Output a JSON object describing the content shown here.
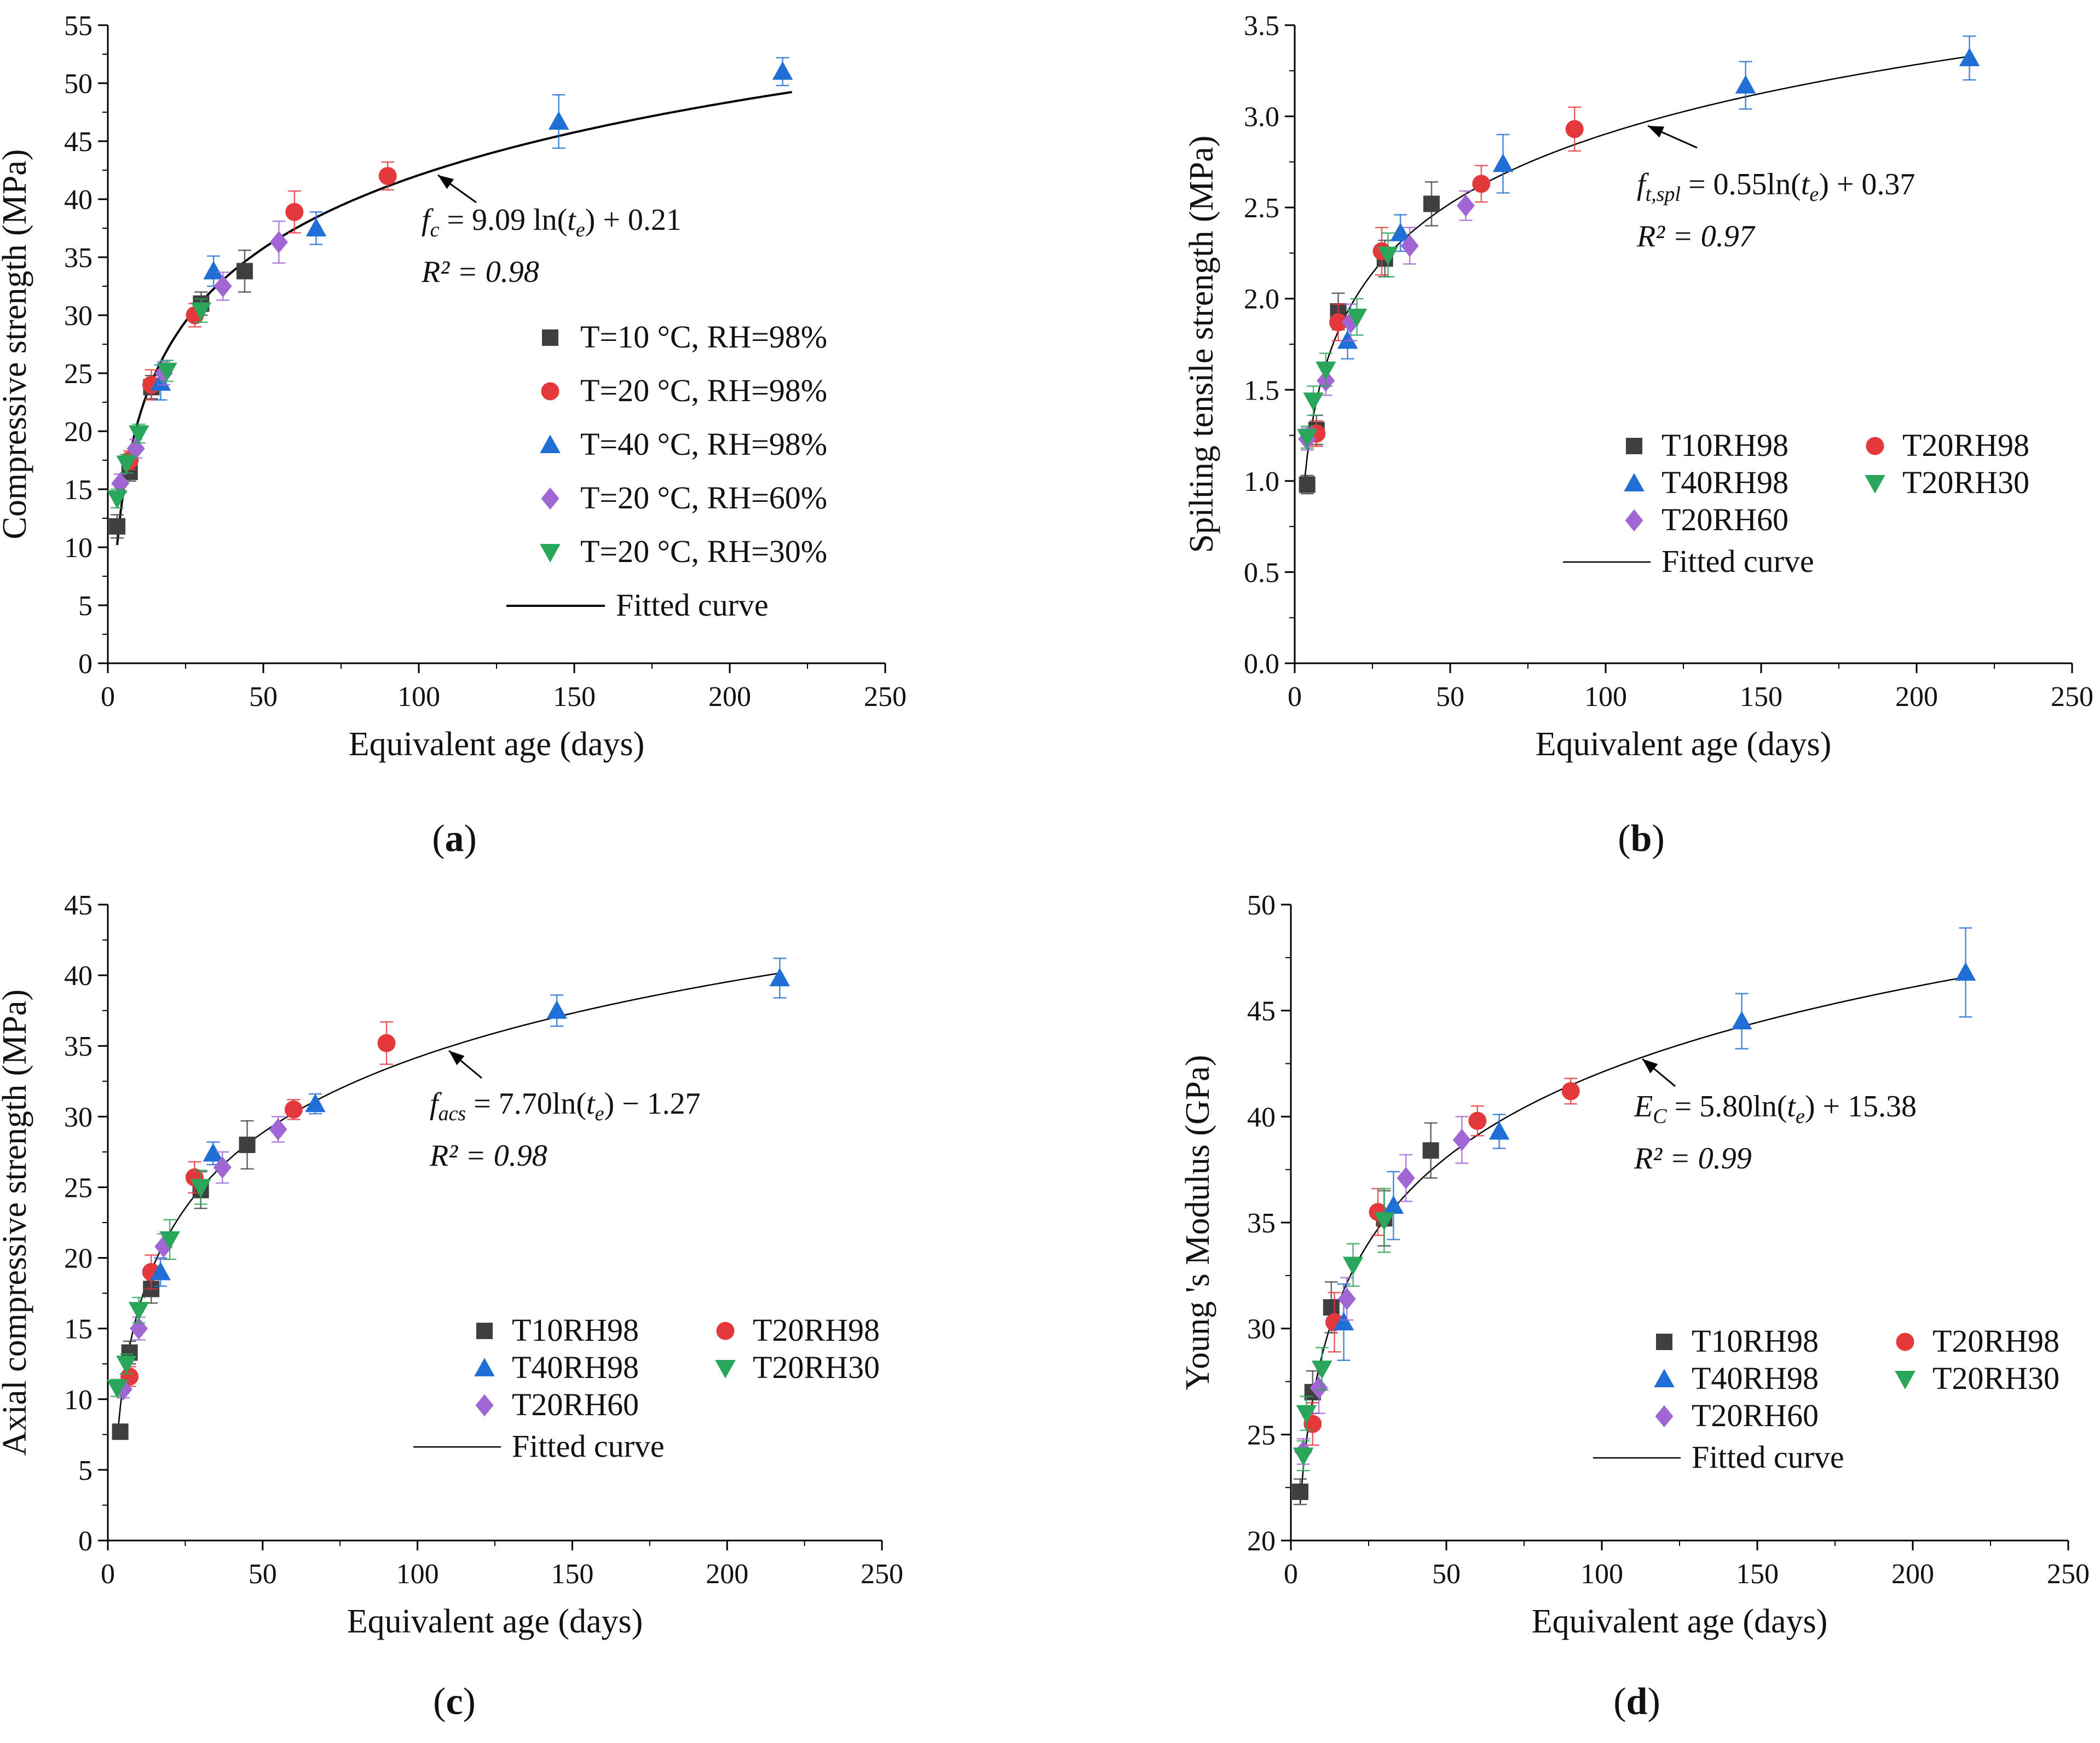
{
  "colors": {
    "T10RH98": "#3f3f3f",
    "T20RH98": "#e5383b",
    "T40RH98": "#1f6fd6",
    "T20RH60": "#a066d3",
    "T20RH30": "#2aa65a",
    "curve": "#000000"
  },
  "chart_data": [
    {
      "type": "scatter",
      "panel": "(a)",
      "xlabel": "Equivalent age (days)",
      "ylabel": "Compressive strength (MPa)",
      "xlim": [
        0,
        250
      ],
      "ylim": [
        0,
        55
      ],
      "xticks": [
        0,
        50,
        100,
        150,
        200,
        250
      ],
      "yticks": [
        0,
        5,
        10,
        15,
        20,
        25,
        30,
        35,
        40,
        45,
        50,
        55
      ],
      "equation": "f_c = 9.09 ln(t_e) + 0.21",
      "r2": "R² = 0.98",
      "fit": {
        "a": 9.09,
        "b": 0.21,
        "x_range": [
          3,
          220
        ]
      },
      "legend_labels": [
        "T=10 °C, RH=98%",
        "T=20 °C, RH=98%",
        "T=40 °C, RH=98%",
        "T=20 °C, RH=60%",
        "T=20 °C, RH=30%",
        "Fitted curve"
      ],
      "series": [
        {
          "name": "T10RH98",
          "marker": "square",
          "points": [
            [
              3,
              11.8,
              1
            ],
            [
              7,
              16.5,
              0.8
            ],
            [
              14,
              23.8,
              1
            ],
            [
              30,
              31,
              1
            ],
            [
              44,
              33.8,
              1.8
            ]
          ]
        },
        {
          "name": "T20RH98",
          "marker": "circle",
          "points": [
            [
              7,
              17.5,
              0.8
            ],
            [
              14,
              24,
              1.3
            ],
            [
              28,
              30,
              1
            ],
            [
              60,
              38.9,
              1.8
            ],
            [
              90,
              42,
              1.2
            ]
          ]
        },
        {
          "name": "T40RH98",
          "marker": "triangle",
          "points": [
            [
              17,
              24.2,
              1.5
            ],
            [
              34,
              33.8,
              1.3
            ],
            [
              67,
              37.5,
              1.4
            ],
            [
              145,
              46.7,
              2.3
            ],
            [
              217,
              51,
              1.2
            ]
          ]
        },
        {
          "name": "T20RH60",
          "marker": "diamond",
          "points": [
            [
              4,
              15.5,
              0.8
            ],
            [
              9,
              18.5,
              0.8
            ],
            [
              18,
              25,
              1
            ],
            [
              37,
              32.5,
              1.2
            ],
            [
              55,
              36.3,
              1.8
            ]
          ]
        },
        {
          "name": "T20RH30",
          "marker": "triangle-down",
          "points": [
            [
              3,
              14.2,
              0.8
            ],
            [
              6,
              17.2,
              0.8
            ],
            [
              10,
              19.8,
              0.8
            ],
            [
              19,
              25.2,
              0.9
            ],
            [
              30,
              30.4,
              1
            ]
          ]
        }
      ]
    },
    {
      "type": "scatter",
      "panel": "(b)",
      "xlabel": "Equivalent age (days)",
      "ylabel": "Spilting tensile strength (MPa)",
      "xlim": [
        0,
        250
      ],
      "ylim": [
        0,
        3.5
      ],
      "xticks": [
        0,
        50,
        100,
        150,
        200,
        250
      ],
      "yticks": [
        0.0,
        0.5,
        1.0,
        1.5,
        2.0,
        2.5,
        3.0,
        3.5
      ],
      "equation": "f_t,spl = 0.55ln(t_e) + 0.37",
      "r2": "R² = 0.97",
      "fit": {
        "a": 0.55,
        "b": 0.37,
        "x_range": [
          3,
          217
        ]
      },
      "legend_labels": [
        "T10RH98",
        "T20RH98",
        "T40RH98",
        "T20RH30",
        "T20RH60",
        "Fitted curve"
      ],
      "series": [
        {
          "name": "T10RH98",
          "marker": "square",
          "points": [
            [
              4,
              0.98,
              0.05
            ],
            [
              7,
              1.28,
              0.08
            ],
            [
              14,
              1.93,
              0.1
            ],
            [
              29,
              2.22,
              0.1
            ],
            [
              44,
              2.52,
              0.12
            ]
          ]
        },
        {
          "name": "T20RH98",
          "marker": "circle",
          "points": [
            [
              7,
              1.26,
              0.07
            ],
            [
              14,
              1.87,
              0.1
            ],
            [
              28,
              2.26,
              0.13
            ],
            [
              60,
              2.63,
              0.1
            ],
            [
              90,
              2.93,
              0.12
            ]
          ]
        },
        {
          "name": "T40RH98",
          "marker": "triangle",
          "points": [
            [
              17,
              1.77,
              0.1
            ],
            [
              34,
              2.36,
              0.1
            ],
            [
              67,
              2.74,
              0.16
            ],
            [
              145,
              3.17,
              0.13
            ],
            [
              217,
              3.32,
              0.12
            ]
          ]
        },
        {
          "name": "T20RH60",
          "marker": "diamond",
          "points": [
            [
              4,
              1.23,
              0.06
            ],
            [
              10,
              1.55,
              0.08
            ],
            [
              18,
              1.87,
              0.1
            ],
            [
              37,
              2.29,
              0.1
            ],
            [
              55,
              2.51,
              0.08
            ]
          ]
        },
        {
          "name": "T20RH30",
          "marker": "triangle-down",
          "points": [
            [
              4,
              1.24,
              0.06
            ],
            [
              6,
              1.44,
              0.08
            ],
            [
              10,
              1.61,
              0.09
            ],
            [
              20,
              1.9,
              0.1
            ],
            [
              30,
              2.24,
              0.12
            ]
          ]
        }
      ]
    },
    {
      "type": "scatter",
      "panel": "(c)",
      "xlabel": "Equivalent age (days)",
      "ylabel": "Axial compressive strength (MPa)",
      "xlim": [
        0,
        250
      ],
      "ylim": [
        0,
        45
      ],
      "xticks": [
        0,
        50,
        100,
        150,
        200,
        250
      ],
      "yticks": [
        0,
        5,
        10,
        15,
        20,
        25,
        30,
        35,
        40,
        45
      ],
      "equation": "f_acs = 7.70ln(t_e) − 1.27",
      "r2": "R² = 0.98",
      "fit": {
        "a": 7.7,
        "b": -1.27,
        "x_range": [
          3,
          217
        ]
      },
      "legend_labels": [
        "T10RH98",
        "T20RH98",
        "T40RH98",
        "T20RH30",
        "T20RH60",
        "Fitted curve"
      ],
      "series": [
        {
          "name": "T10RH98",
          "marker": "square",
          "points": [
            [
              4,
              7.7,
              0.5
            ],
            [
              7,
              13.3,
              0.8
            ],
            [
              14,
              17.8,
              1
            ],
            [
              30,
              24.8,
              1.3
            ],
            [
              45,
              28,
              1.7
            ]
          ]
        },
        {
          "name": "T20RH98",
          "marker": "circle",
          "points": [
            [
              7,
              11.6,
              0.7
            ],
            [
              14,
              19,
              1.2
            ],
            [
              28,
              25.7,
              1.1
            ],
            [
              60,
              30.5,
              0.7
            ],
            [
              90,
              35.2,
              1.5
            ]
          ]
        },
        {
          "name": "T40RH98",
          "marker": "triangle",
          "points": [
            [
              17,
              19,
              1
            ],
            [
              34,
              27.4,
              0.8
            ],
            [
              67,
              30.9,
              0.7
            ],
            [
              145,
              37.5,
              1.1
            ],
            [
              217,
              39.8,
              1.4
            ]
          ]
        },
        {
          "name": "T20RH60",
          "marker": "diamond",
          "points": [
            [
              5,
              10.7,
              0.6
            ],
            [
              10,
              15,
              0.8
            ],
            [
              18,
              20.8,
              0.9
            ],
            [
              37,
              26.4,
              1.1
            ],
            [
              55,
              29.1,
              0.9
            ]
          ]
        },
        {
          "name": "T20RH30",
          "marker": "triangle-down",
          "points": [
            [
              3,
              10.8,
              0.6
            ],
            [
              6,
              12.5,
              0.7
            ],
            [
              10,
              16.3,
              0.9
            ],
            [
              20,
              21.3,
              1.4
            ],
            [
              30,
              25,
              1.2
            ]
          ]
        }
      ]
    },
    {
      "type": "scatter",
      "panel": "(d)",
      "xlabel": "Equivalent age (days)",
      "ylabel": "Young 's Modulus (GPa)",
      "xlim": [
        0,
        250
      ],
      "ylim": [
        20,
        50
      ],
      "xticks": [
        0,
        50,
        100,
        150,
        200,
        250
      ],
      "yticks": [
        20,
        25,
        30,
        35,
        40,
        45,
        50
      ],
      "equation": "E_C = 5.80ln(t_e) + 15.38",
      "r2": "R² = 0.99",
      "fit": {
        "a": 5.8,
        "b": 15.38,
        "x_range": [
          3,
          217
        ]
      },
      "legend_labels": [
        "T10RH98",
        "T20RH98",
        "T40RH98",
        "T20RH30",
        "T20RH60",
        "Fitted curve"
      ],
      "series": [
        {
          "name": "T10RH98",
          "marker": "square",
          "points": [
            [
              3,
              22.3,
              0.6
            ],
            [
              7,
              27,
              1
            ],
            [
              13,
              31,
              1.2
            ],
            [
              30,
              35.2,
              1.3
            ],
            [
              45,
              38.4,
              1.3
            ]
          ]
        },
        {
          "name": "T20RH98",
          "marker": "circle",
          "points": [
            [
              7,
              25.5,
              1
            ],
            [
              14,
              30.3,
              1.4
            ],
            [
              28,
              35.5,
              1.1
            ],
            [
              60,
              39.8,
              0.7
            ],
            [
              90,
              41.2,
              0.6
            ]
          ]
        },
        {
          "name": "T40RH98",
          "marker": "triangle",
          "points": [
            [
              17,
              30.3,
              1.8
            ],
            [
              33,
              35.8,
              1.6
            ],
            [
              67,
              39.3,
              0.8
            ],
            [
              145,
              44.5,
              1.3
            ],
            [
              217,
              46.8,
              2.1
            ]
          ]
        },
        {
          "name": "T20RH60",
          "marker": "diamond",
          "points": [
            [
              4,
              24.2,
              0.6
            ],
            [
              9,
              27.2,
              1.2
            ],
            [
              18,
              31.4,
              1
            ],
            [
              37,
              37.1,
              1.1
            ],
            [
              55,
              38.9,
              1.1
            ]
          ]
        },
        {
          "name": "T20RH30",
          "marker": "triangle-down",
          "points": [
            [
              4,
              24,
              0.7
            ],
            [
              5,
              26,
              0.8
            ],
            [
              10,
              28.1,
              1
            ],
            [
              20,
              33,
              1
            ],
            [
              30,
              35.1,
              1.5
            ]
          ]
        }
      ]
    }
  ]
}
